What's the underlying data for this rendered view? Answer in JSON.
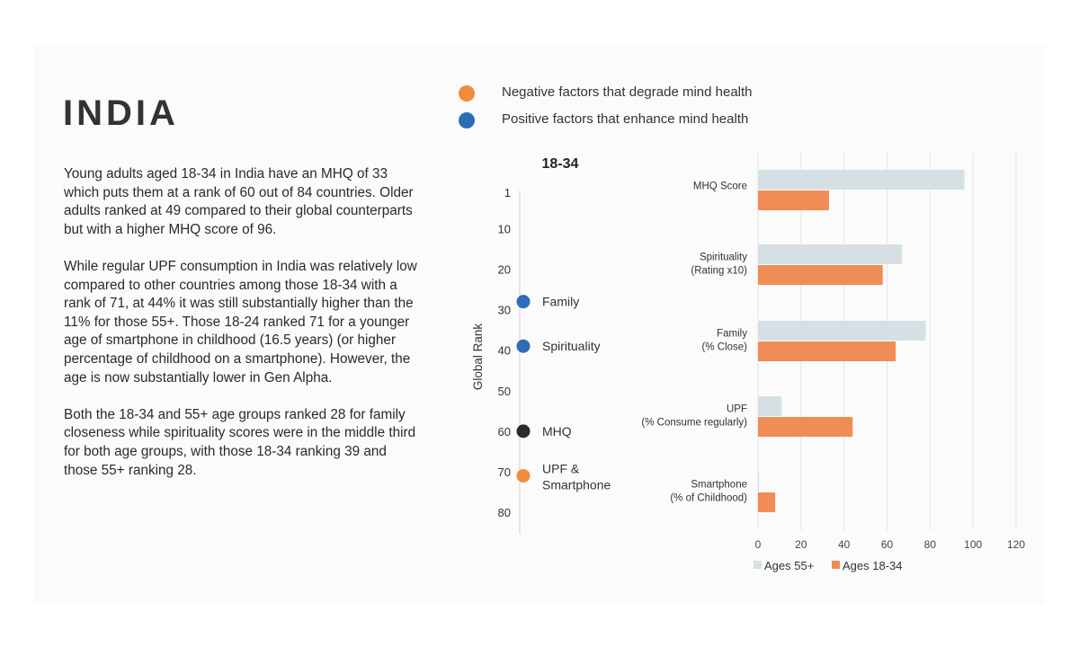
{
  "header": {
    "country": "INDIA"
  },
  "paragraphs": [
    "Young adults aged 18-34 in India have an MHQ of 33 which puts them at a rank of 60 out of 84 countries. Older adults ranked at 49 compared to their global counterparts but with a higher MHQ score of 96.",
    "While regular UPF consumption in India was relatively low compared to other countries among those 18-34 with a rank of 71, at 44% it was still substantially higher than the 11% for those 55+. Those 18-24 ranked 71 for a younger age of smartphone in childhood (16.5 years) (or higher percentage of childhood on a smartphone). However, the age is now substantially lower in Gen Alpha.",
    "Both the 18-34 and 55+ age groups ranked 28 for family closeness while spirituality scores were in the middle third for both age groups, with those 18-34 ranking 39 and those 55+ ranking 28."
  ],
  "factor_legend": [
    {
      "label": "Negative factors that degrade mind health",
      "color": "#f08c3c"
    },
    {
      "label": "Positive factors that enhance mind health",
      "color": "#2c6db5"
    }
  ],
  "chart_data": [
    {
      "type": "scatter",
      "title": "18-34",
      "ylabel": "Global Rank",
      "yticks": [
        1,
        10,
        20,
        30,
        40,
        50,
        60,
        70,
        80
      ],
      "ylim": [
        1,
        80
      ],
      "inverted": true,
      "points": [
        {
          "label": "Family",
          "rank": 28,
          "color": "#2c6db5"
        },
        {
          "label": "Spirituality",
          "rank": 39,
          "color": "#2c6db5"
        },
        {
          "label": "MHQ",
          "rank": 60,
          "color": "#2b2b2b"
        },
        {
          "label": "UPF &",
          "label2": "Smartphone",
          "rank": 71,
          "color": "#f08c3c"
        }
      ]
    },
    {
      "type": "bar",
      "orientation": "horizontal",
      "categories": [
        {
          "line1": "MHQ Score",
          "line2": ""
        },
        {
          "line1": "Spirituality",
          "line2": "(Rating x10)"
        },
        {
          "line1": "Family",
          "line2": "(% Close)"
        },
        {
          "line1": "UPF",
          "line2": "(% Consume regularly)"
        },
        {
          "line1": "Smartphone",
          "line2": "(% of Childhood)"
        }
      ],
      "series": [
        {
          "name": "Ages 55+",
          "color": "#d6e0e4",
          "values": [
            96,
            67,
            78,
            11,
            0.5
          ]
        },
        {
          "name": "Ages 18-34",
          "color": "#f08c55",
          "values": [
            33,
            58,
            64,
            44,
            8
          ]
        }
      ],
      "xticks": [
        0,
        20,
        40,
        60,
        80,
        100,
        120
      ],
      "xlim": [
        0,
        120
      ]
    }
  ]
}
